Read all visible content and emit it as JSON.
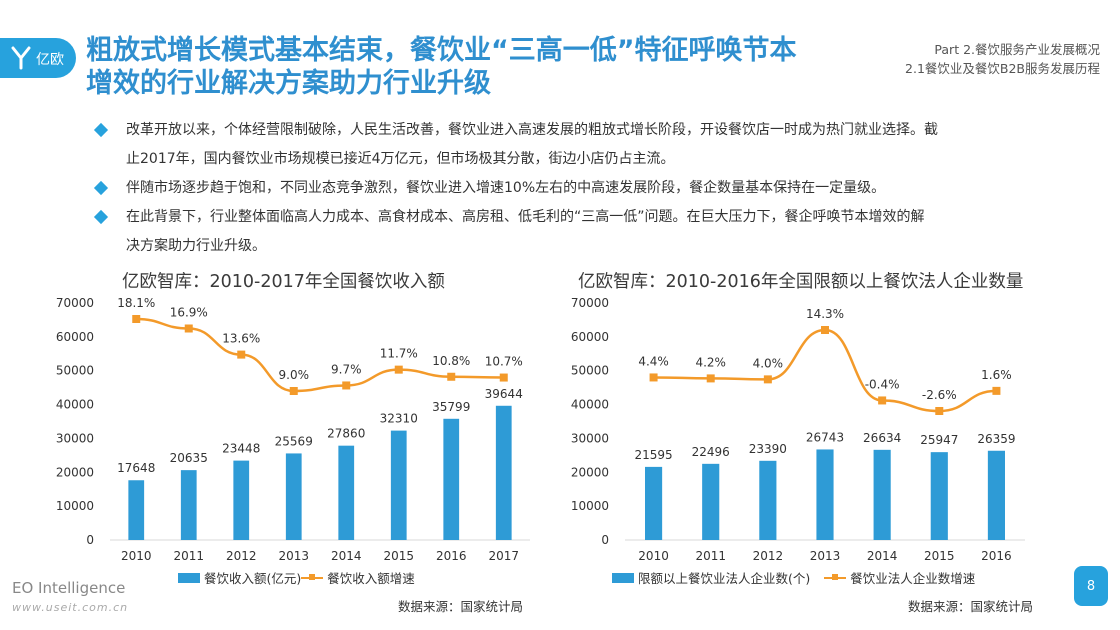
{
  "header": {
    "logo_text": "亿欧",
    "title_line1": "粗放式增长模式基本结束，餐饮业“三高一低”特征呼唤节本",
    "title_line2": "增效的行业解决方案助力行业升级",
    "part_line1": "Part 2.餐饮服务产业发展概况",
    "part_line2": "2.1餐饮业及餐饮B2B服务发展历程"
  },
  "bullets": [
    {
      "line1": "改革开放以来，个体经营限制破除，人民生活改善，餐饮业进入高速发展的粗放式增长阶段，开设餐饮店一时成为热门就业选择。截",
      "line2": "止2017年，国内餐饮业市场规模已接近4万亿元，但市场极其分散，街边小店仍占主流。"
    },
    {
      "line1": "伴随市场逐步趋于饱和，不同业态竞争激烈，餐饮业进入增速10%左右的中高速发展阶段，餐企数量基本保持在一定量级。",
      "line2": ""
    },
    {
      "line1": "在此背景下，行业整体面临高人力成本、高食材成本、高房租、低毛利的“三高一低”问题。在巨大压力下，餐企呼唤节本增效的解",
      "line2": "决方案助力行业升级。"
    }
  ],
  "colors": {
    "accent": "#27a2dd",
    "bar": "#2e9bd6",
    "line": "#f39a2a"
  },
  "chart_data": [
    {
      "type": "bar",
      "title": "亿欧智库：2010-2017年全国餐饮收入额",
      "categories": [
        "2010",
        "2011",
        "2012",
        "2013",
        "2014",
        "2015",
        "2016",
        "2017"
      ],
      "ylim": [
        0,
        70000
      ],
      "yticks": [
        "0",
        "10000",
        "20000",
        "30000",
        "40000",
        "50000",
        "60000",
        "70000"
      ],
      "grid": false,
      "series": [
        {
          "name": "餐饮收入额(亿元)",
          "type": "bar",
          "values": [
            17648,
            20635,
            23448,
            25569,
            27860,
            32310,
            35799,
            39644
          ],
          "labels": [
            "17648",
            "20635",
            "23448",
            "25569",
            "27860",
            "32310",
            "35799",
            "39644"
          ]
        },
        {
          "name": "餐饮收入额增速",
          "type": "line",
          "values": [
            18.1,
            16.9,
            13.6,
            9.0,
            9.7,
            11.7,
            10.8,
            10.7
          ],
          "labels": [
            "18.1%",
            "16.9%",
            "13.6%",
            "9.0%",
            "9.7%",
            "11.7%",
            "10.8%",
            "10.7%"
          ]
        }
      ],
      "legend_position": "bottom",
      "source": "数据来源：国家统计局"
    },
    {
      "type": "bar",
      "title": "亿欧智库：2010-2016年全国限额以上餐饮法人企业数量",
      "categories": [
        "2010",
        "2011",
        "2012",
        "2013",
        "2014",
        "2015",
        "2016"
      ],
      "ylim": [
        0,
        70000
      ],
      "yticks": [
        "0",
        "10000",
        "20000",
        "30000",
        "40000",
        "50000",
        "60000",
        "70000"
      ],
      "grid": false,
      "series": [
        {
          "name": "限额以上餐饮业法人企业数(个)",
          "type": "bar",
          "values": [
            21595,
            22496,
            23390,
            26743,
            26634,
            25947,
            26359
          ],
          "labels": [
            "21595",
            "22496",
            "23390",
            "26743",
            "26634",
            "25947",
            "26359"
          ]
        },
        {
          "name": "餐饮业法人企业数增速",
          "type": "line",
          "values": [
            4.4,
            4.2,
            4.0,
            14.3,
            -0.4,
            -2.6,
            1.6
          ],
          "labels": [
            "4.4%",
            "4.2%",
            "4.0%",
            "14.3%",
            "-0.4%",
            "-2.6%",
            "1.6%"
          ]
        }
      ],
      "legend_position": "bottom",
      "source": "数据来源：国家统计局"
    }
  ],
  "footer": {
    "brand": "EO Intelligence",
    "url": "www.useit.com.cn",
    "page_number": "8"
  }
}
